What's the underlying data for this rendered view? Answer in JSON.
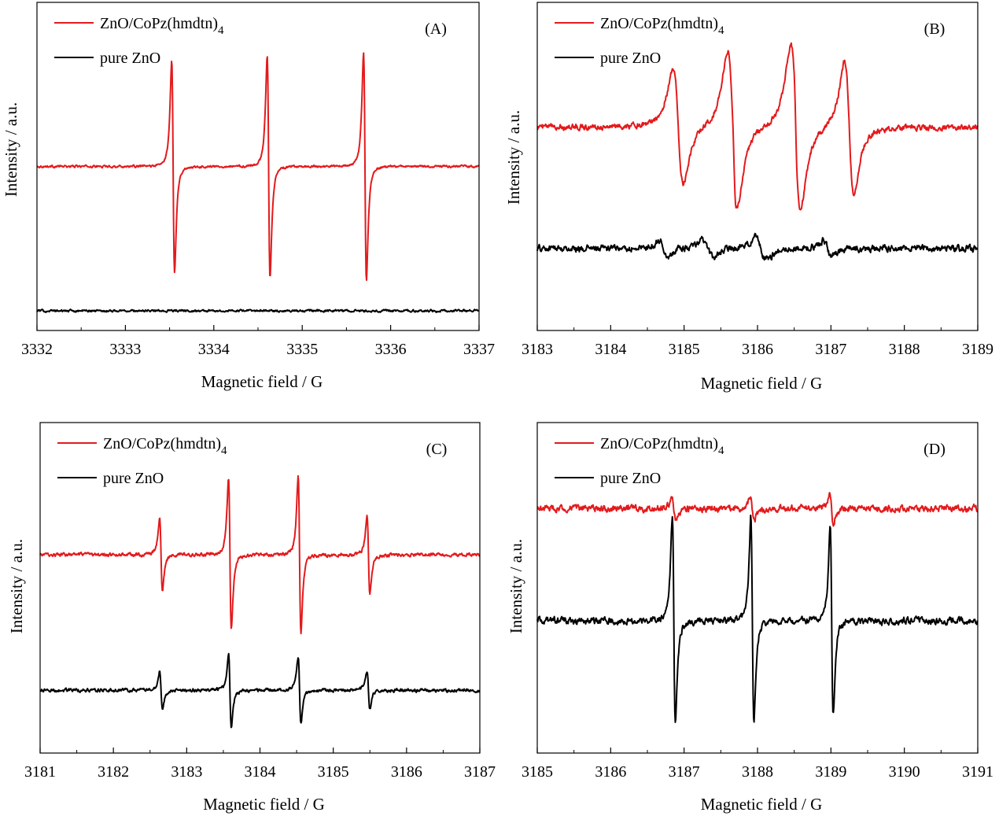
{
  "figure": {
    "colors": {
      "ZnO/CoPz(hmdtn)4": "#e31a1c",
      "pure ZnO": "#000000"
    }
  },
  "chart_data": [
    {
      "panel": "(A)",
      "type": "line",
      "xlabel": "Magnetic field / G",
      "ylabel": "Intensity / a.u.",
      "xlim": [
        3332,
        3337
      ],
      "ylim": [
        0,
        1
      ],
      "x_ticks": [
        "3332",
        "3333",
        "3334",
        "3335",
        "3336",
        "3337"
      ],
      "y_ticks": [],
      "legend": [
        "ZnO/CoPz(hmdtn)4",
        "pure ZnO"
      ],
      "legend_position": "top-left",
      "grid": false,
      "series": [
        {
          "name": "ZnO/CoPz(hmdtn)4",
          "color": "#e31a1c",
          "baseline": 0.5,
          "noise": 0.002,
          "peaks": [
            {
              "center": 3333.54,
              "amplitude": 0.38,
              "width": 0.028
            },
            {
              "center": 3334.62,
              "amplitude": 0.4,
              "width": 0.028
            },
            {
              "center": 3335.71,
              "amplitude": 0.41,
              "width": 0.028
            }
          ]
        },
        {
          "name": "pure ZnO",
          "color": "#000000",
          "baseline": 0.06,
          "noise": 0.002,
          "peaks": []
        }
      ]
    },
    {
      "panel": "(B)",
      "type": "line",
      "xlabel": "Magnetic field / G",
      "ylabel": "Intensity / a.u.",
      "xlim": [
        3183,
        3189
      ],
      "ylim": [
        0,
        1
      ],
      "x_ticks": [
        "3183",
        "3184",
        "3185",
        "3186",
        "3187",
        "3188",
        "3189"
      ],
      "y_ticks": [],
      "legend": [
        "ZnO/CoPz(hmdtn)4",
        "pure ZnO"
      ],
      "legend_position": "top-left",
      "grid": false,
      "series": [
        {
          "name": "ZnO/CoPz(hmdtn)4",
          "color": "#e31a1c",
          "baseline": 0.62,
          "noise": 0.005,
          "peaks": [
            {
              "center": 3184.92,
              "amplitude": 0.21,
              "width": 0.12
            },
            {
              "center": 3185.66,
              "amplitude": 0.27,
              "width": 0.12
            },
            {
              "center": 3186.52,
              "amplitude": 0.29,
              "width": 0.12
            },
            {
              "center": 3187.25,
              "amplitude": 0.24,
              "width": 0.11
            },
            {
              "center": 3185.68,
              "amplitude": 0.05,
              "width": 0.03
            },
            {
              "center": 3186.52,
              "amplitude": 0.05,
              "width": 0.03
            }
          ]
        },
        {
          "name": "pure ZnO",
          "color": "#000000",
          "baseline": 0.25,
          "noise": 0.006,
          "peaks": [
            {
              "center": 3184.72,
              "amplitude": 0.03,
              "width": 0.09
            },
            {
              "center": 3185.32,
              "amplitude": 0.03,
              "width": 0.12
            },
            {
              "center": 3186.05,
              "amplitude": 0.04,
              "width": 0.12
            },
            {
              "center": 3186.95,
              "amplitude": 0.03,
              "width": 0.1
            }
          ]
        }
      ]
    },
    {
      "panel": "(C)",
      "type": "line",
      "xlabel": "Magnetic field / G",
      "ylabel": "Intensity / a.u.",
      "xlim": [
        3181,
        3187
      ],
      "ylim": [
        0,
        1
      ],
      "x_ticks": [
        "3181",
        "3182",
        "3183",
        "3184",
        "3185",
        "3186",
        "3187"
      ],
      "y_ticks": [],
      "legend": [
        "ZnO/CoPz(hmdtn)4",
        "pure ZnO"
      ],
      "legend_position": "top-left",
      "grid": false,
      "series": [
        {
          "name": "ZnO/CoPz(hmdtn)4",
          "color": "#e31a1c",
          "baseline": 0.6,
          "noise": 0.003,
          "peaks": [
            {
              "center": 3182.65,
              "amplitude": 0.13,
              "width": 0.033
            },
            {
              "center": 3183.59,
              "amplitude": 0.27,
              "width": 0.033
            },
            {
              "center": 3184.54,
              "amplitude": 0.28,
              "width": 0.033
            },
            {
              "center": 3185.48,
              "amplitude": 0.14,
              "width": 0.033
            }
          ]
        },
        {
          "name": "pure ZnO",
          "color": "#000000",
          "baseline": 0.19,
          "noise": 0.003,
          "peaks": [
            {
              "center": 3182.65,
              "amplitude": 0.07,
              "width": 0.033
            },
            {
              "center": 3183.59,
              "amplitude": 0.13,
              "width": 0.033
            },
            {
              "center": 3184.54,
              "amplitude": 0.12,
              "width": 0.033
            },
            {
              "center": 3185.48,
              "amplitude": 0.07,
              "width": 0.033
            }
          ]
        }
      ]
    },
    {
      "panel": "(D)",
      "type": "line",
      "xlabel": "Magnetic field / G",
      "ylabel": "Intensity / a.u.",
      "xlim": [
        3185,
        3191
      ],
      "ylim": [
        0,
        1
      ],
      "x_ticks": [
        "3185",
        "3186",
        "3187",
        "3188",
        "3189",
        "3190",
        "3191"
      ],
      "y_ticks": [],
      "legend": [
        "ZnO/CoPz(hmdtn)4",
        "pure ZnO"
      ],
      "legend_position": "top-left",
      "grid": false,
      "series": [
        {
          "name": "ZnO/CoPz(hmdtn)4",
          "color": "#e31a1c",
          "baseline": 0.74,
          "noise": 0.006,
          "peaks": [
            {
              "center": 3186.86,
              "amplitude": 0.04,
              "width": 0.04
            },
            {
              "center": 3187.93,
              "amplitude": 0.05,
              "width": 0.04
            },
            {
              "center": 3189.01,
              "amplitude": 0.05,
              "width": 0.04
            }
          ]
        },
        {
          "name": "pure ZnO",
          "color": "#000000",
          "baseline": 0.4,
          "noise": 0.006,
          "peaks": [
            {
              "center": 3186.86,
              "amplitude": 0.37,
              "width": 0.036
            },
            {
              "center": 3187.93,
              "amplitude": 0.37,
              "width": 0.036
            },
            {
              "center": 3189.01,
              "amplitude": 0.34,
              "width": 0.036
            }
          ]
        }
      ]
    }
  ]
}
